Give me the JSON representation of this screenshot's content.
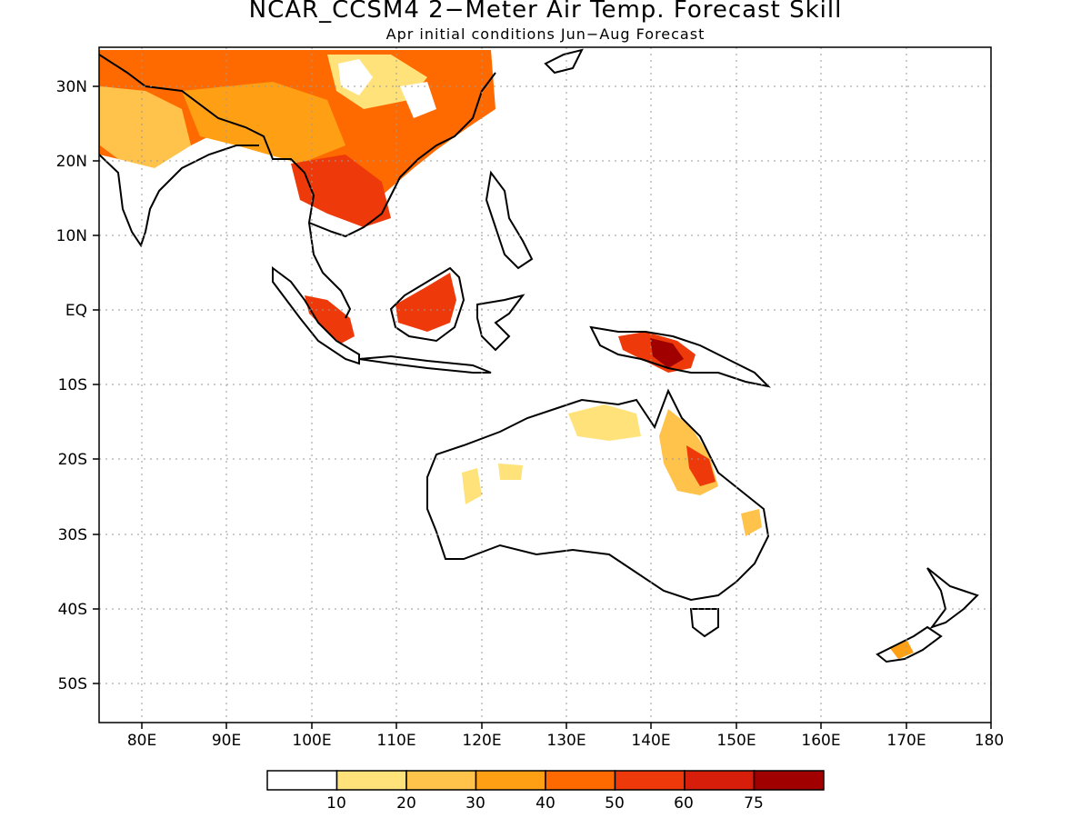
{
  "title": "NCAR_CCSM4 2−Meter Air Temp. Forecast Skill",
  "subtitle": "Apr initial conditions  Jun−Aug Forecast",
  "map": {
    "lon_range": [
      75,
      180
    ],
    "lat_range": [
      -55,
      35
    ],
    "lon_ticks": [
      "80E",
      "90E",
      "100E",
      "110E",
      "120E",
      "130E",
      "140E",
      "150E",
      "160E",
      "170E",
      "180"
    ],
    "lat_ticks": [
      "30N",
      "20N",
      "10N",
      "EQ",
      "10S",
      "20S",
      "30S",
      "40S",
      "50S"
    ],
    "gridlines": "dotted"
  },
  "colorbar": {
    "labels": [
      "10",
      "20",
      "30",
      "40",
      "50",
      "60",
      "75"
    ],
    "colors": [
      "#ffffff",
      "#ffe27a",
      "#ffc24a",
      "#ffa014",
      "#ff6a00",
      "#ee3a0a",
      "#d61e0a",
      "#a00000"
    ]
  },
  "colors": {
    "land_outline": "#000000",
    "grid": "#9a9a9a"
  }
}
